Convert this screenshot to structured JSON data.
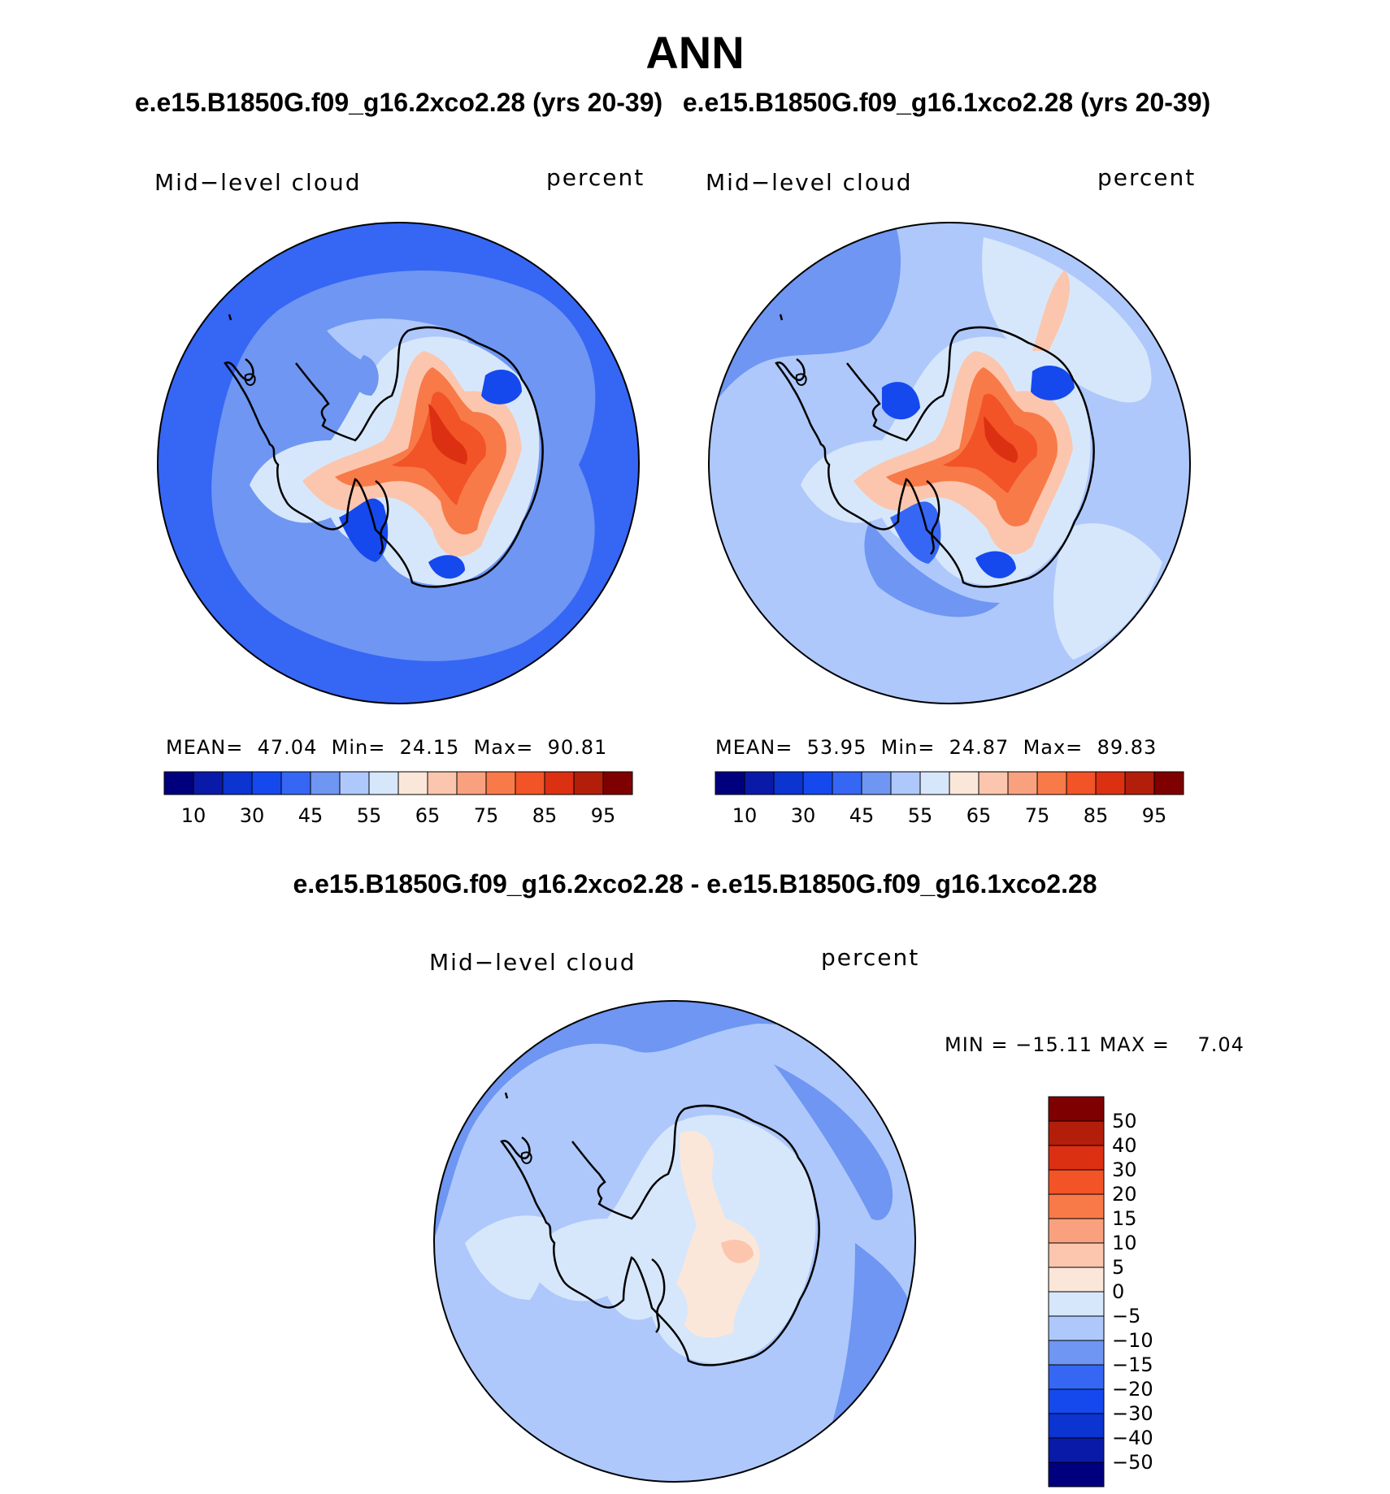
{
  "figure": {
    "title": "ANN",
    "case_titles": [
      "e.e15.B1850G.f09_g16.2xco2.28 (yrs 20-39)",
      "e.e15.B1850G.f09_g16.1xco2.28 (yrs 20-39)"
    ],
    "diff_title": "e.e15.B1850G.f09_g16.2xco2.28 - e.e15.B1850G.f09_g16.1xco2.28"
  },
  "panels": [
    {
      "variable": "Mid−level cloud",
      "units": "percent",
      "stats": {
        "mean_label": "MEAN=",
        "mean": "47.04",
        "min_label": "Min=",
        "min": "24.15",
        "max_label": "Max=",
        "max": "90.81"
      }
    },
    {
      "variable": "Mid−level cloud",
      "units": "percent",
      "stats": {
        "mean_label": "MEAN=",
        "mean": "53.95",
        "min_label": "Min=",
        "min": "24.87",
        "max_label": "Max=",
        "max": "89.83"
      }
    },
    {
      "variable": "Mid−level cloud",
      "units": "percent",
      "stats": {
        "min_label": "MIN =",
        "min": "−15.11",
        "max_label": "MAX =",
        "max": "7.04"
      }
    }
  ],
  "colorbar_abs": {
    "colors": [
      "#00007f",
      "#0a1aa8",
      "#0b34d0",
      "#1549ee",
      "#3666f4",
      "#6e96f2",
      "#aec8fb",
      "#d7e7fb",
      "#fbe7d9",
      "#fbc6ad",
      "#f9a17e",
      "#f87a48",
      "#f25327",
      "#dc3012",
      "#b31e0a",
      "#7f0000"
    ],
    "tick_labels": [
      "10",
      "30",
      "45",
      "55",
      "65",
      "75",
      "85",
      "95"
    ]
  },
  "colorbar_diff": {
    "colors": [
      "#7f0000",
      "#b31e0a",
      "#dc3012",
      "#f25327",
      "#f87a48",
      "#f9a17e",
      "#fbc6ad",
      "#fbe7d9",
      "#d7e7fb",
      "#aec8fb",
      "#6e96f2",
      "#3666f4",
      "#1549ee",
      "#0b34d0",
      "#0a1aa8",
      "#00007f"
    ],
    "tick_labels": [
      "50",
      "40",
      "30",
      "20",
      "15",
      "10",
      "5",
      "0",
      "−5",
      "−10",
      "−15",
      "−20",
      "−30",
      "−40",
      "−50"
    ]
  },
  "map_colors": {
    "ocean_deep": "#3666f4",
    "ocean_mid": "#6e96f2",
    "ocean_light": "#aec8fb",
    "pale_blue": "#d7e7fb",
    "pale_orange": "#fbe7d9",
    "light_orange": "#fbc6ad",
    "orange": "#f87a48",
    "red_orange": "#f25327",
    "red": "#dc3012",
    "blue_strong": "#1549ee",
    "blue_dark": "#0b34d0"
  }
}
